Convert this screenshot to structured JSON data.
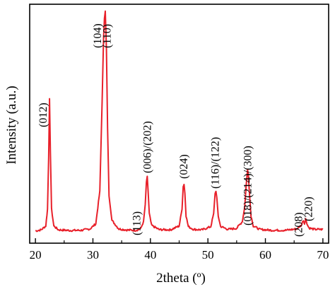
{
  "chart_data": {
    "type": "line",
    "title": "",
    "xlabel": "2theta (º)",
    "ylabel": "Intensity (a.u.)",
    "xlim": [
      19,
      71
    ],
    "ylim": [
      0,
      100
    ],
    "x_ticks": [
      20,
      30,
      40,
      50,
      60,
      70
    ],
    "y_ticks_shown": false,
    "grid": false,
    "series": [
      {
        "color": "#e8202a",
        "x": [
          20.0,
          21.0,
          21.8,
          22.1,
          22.3,
          22.45,
          22.6,
          22.8,
          23.2,
          24.0,
          26.0,
          28.0,
          29.5,
          30.5,
          31.2,
          31.6,
          31.85,
          32.0,
          32.15,
          32.35,
          32.55,
          32.8,
          33.3,
          34.5,
          36.0,
          37.5,
          38.3,
          38.8,
          39.1,
          39.3,
          39.45,
          39.6,
          39.8,
          40.2,
          41.5,
          43.5,
          45.0,
          45.5,
          45.7,
          45.85,
          46.0,
          46.2,
          46.6,
          47.5,
          49.0,
          50.5,
          51.0,
          51.25,
          51.4,
          51.55,
          51.8,
          52.2,
          53.5,
          55.0,
          56.0,
          56.4,
          56.7,
          56.9,
          57.05,
          57.2,
          57.5,
          57.9,
          59.0,
          61.0,
          63.5,
          65.5,
          66.3,
          66.6,
          66.8,
          67.0,
          67.15,
          67.3,
          67.6,
          68.5,
          70.0
        ],
        "y": [
          2.3,
          2.8,
          4.5,
          12,
          35,
          61,
          38,
          12,
          4.5,
          2.8,
          2.5,
          2.6,
          3.2,
          5.5,
          20,
          60,
          88,
          97,
          100,
          83,
          48,
          18,
          7,
          3.2,
          2.7,
          2.6,
          3.2,
          6.5,
          14,
          24,
          26.5,
          20,
          10,
          4.8,
          2.9,
          2.8,
          4.5,
          12,
          22,
          23,
          19,
          9,
          4.2,
          3.0,
          2.8,
          4.2,
          10,
          19,
          20,
          17,
          9,
          4.3,
          3.0,
          3.5,
          6.5,
          13,
          24,
          29.5,
          27,
          20,
          9,
          4.5,
          3.0,
          2.6,
          2.6,
          3.2,
          5.0,
          7.2,
          5.5,
          7.8,
          6.5,
          5.0,
          3.6,
          3.0,
          3.0
        ]
      }
    ],
    "annotations": [
      {
        "text": "(012)",
        "x": 22.45
      },
      {
        "text": "(104)",
        "x": 31.9
      },
      {
        "text": "(110)",
        "x": 32.7
      },
      {
        "text": "(113)",
        "x": 37.6
      },
      {
        "text": "(006)/(202)",
        "x": 39.45
      },
      {
        "text": "(024)",
        "x": 45.8
      },
      {
        "text": "(116)/(122)",
        "x": 51.3
      },
      {
        "text": "(018)/(214)/(300)",
        "x": 56.95
      },
      {
        "text": "(208)",
        "x": 65.8
      },
      {
        "text": "(220)",
        "x": 67.5
      }
    ]
  }
}
